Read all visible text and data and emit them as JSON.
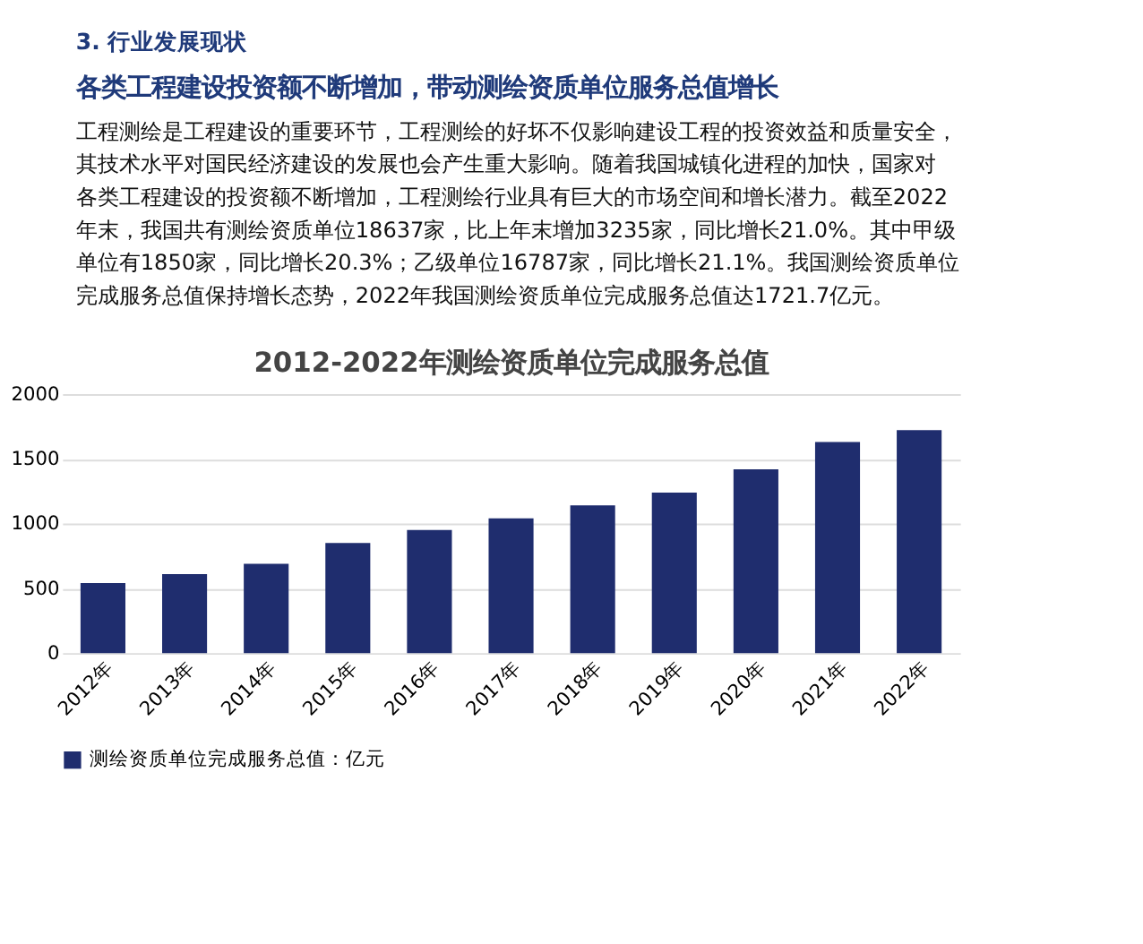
{
  "chart_data": {
    "type": "bar",
    "title": "2012-2022年测绘资质单位完成服务总值",
    "annotations": [
      "3. 行业发展现状",
      "各类工程建设投资额不断增加，带动测绘资质单位服务总值增长",
      "工程测绘是工程建设的重要环节，工程测绘的好坏不仅影响建设工程的投资效益和质量安全，",
      "其技术水平对国民经济建设的发展也会产生重大影响。随着我国城镇化进程的加快，国家对",
      "各类工程建设的投资额不断增加，工程测绘行业具有巨大的市场空间和增长潜力。截至2022",
      "年末，我国共有测绘资质单位18637家，比上年末增加3235家，同比增长21.0%。其中甲级",
      "单位有1850家，同比增长20.3%；乙级单位16787家，同比增长21.1%。我国测绘资质单位",
      "完成服务总值保持增长态势，2022年我国测绘资质单位完成服务总值达1721.7亿元。"
    ],
    "categories": [
      "2012年",
      "2013年",
      "2014年",
      "2015年",
      "2016年",
      "2017年",
      "2018年",
      "2019年",
      "2020年",
      "2021年",
      "2022年"
    ],
    "series": [
      {
        "name": "测绘资质单位完成服务总值：亿元",
        "color": "#1f2d6e",
        "values": [
          540,
          610,
          690,
          850,
          950,
          1040,
          1140,
          1240,
          1420,
          1630,
          1721.7
        ]
      }
    ],
    "ylim": [
      0,
      2000
    ],
    "yticks": [
      0,
      500,
      1000,
      1500,
      2000
    ],
    "grid": "y",
    "legend": "bottom"
  }
}
